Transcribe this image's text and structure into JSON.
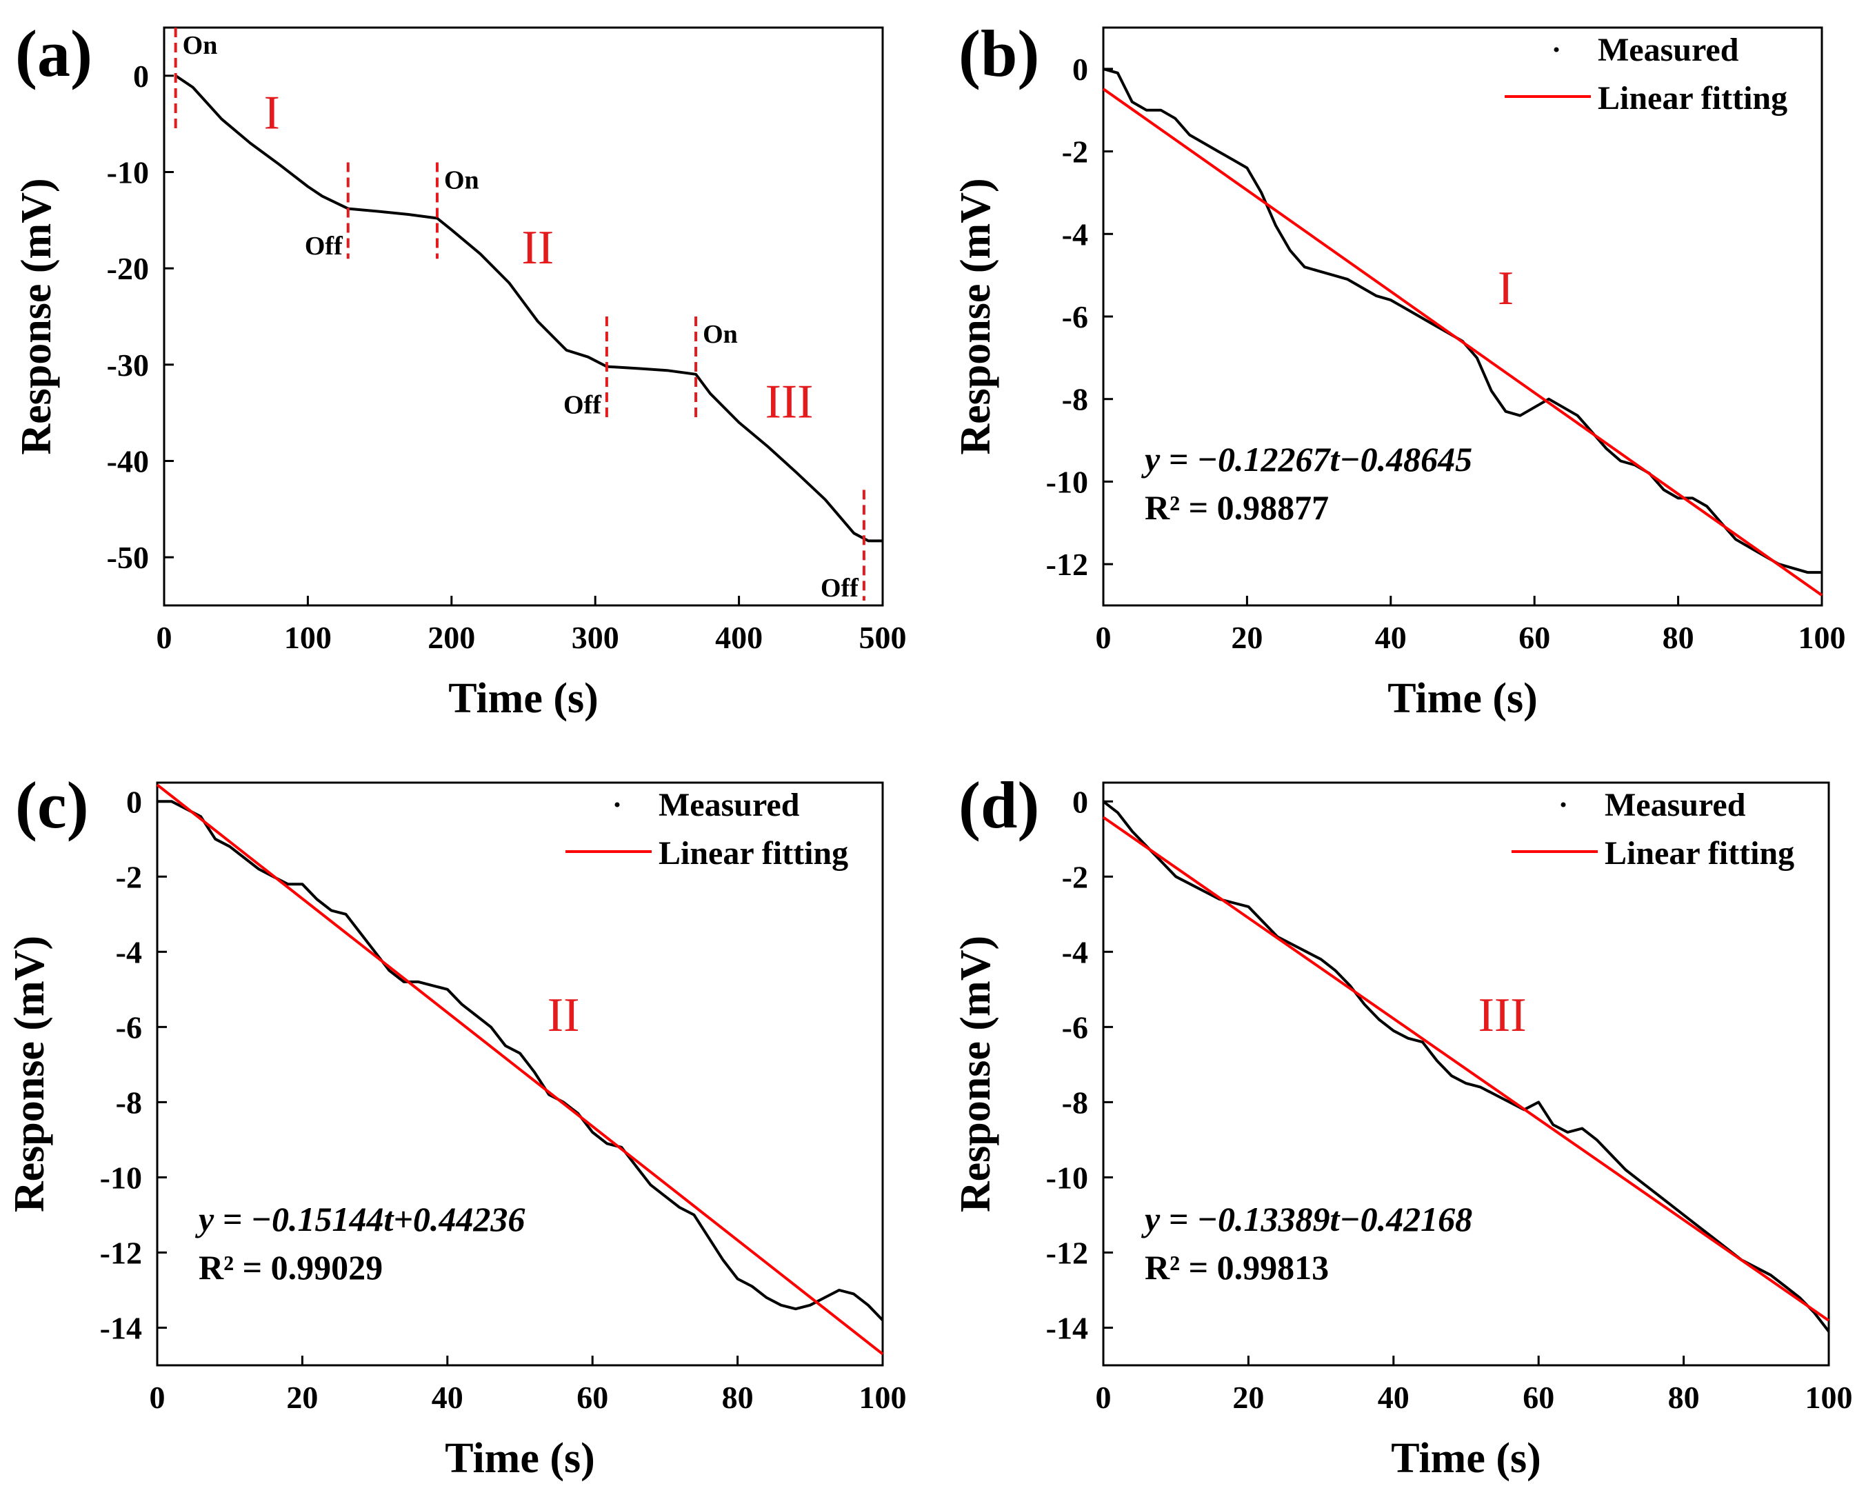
{
  "figure": {
    "colors": {
      "measured": "#000000",
      "fit": "#ff0000",
      "marker": "#e41a1c",
      "roman": "#e41a1c"
    }
  },
  "chart_data": [
    {
      "id": "a",
      "panel_label": "(a)",
      "type": "line",
      "xlabel": "Time (s)",
      "ylabel": "Response (mV)",
      "xlim": [
        0,
        500
      ],
      "ylim": [
        -55,
        5
      ],
      "xticks": [
        0,
        100,
        200,
        300,
        400,
        500
      ],
      "yticks": [
        0,
        -10,
        -20,
        -30,
        -40,
        -50
      ],
      "series": [
        {
          "name": "Response",
          "x": [
            8,
            20,
            40,
            60,
            80,
            100,
            110,
            128,
            150,
            170,
            190,
            200,
            220,
            240,
            260,
            280,
            295,
            308,
            330,
            350,
            370,
            380,
            400,
            420,
            440,
            460,
            480,
            490,
            500
          ],
          "y": [
            0,
            -1.2,
            -4.5,
            -7,
            -9.2,
            -11.5,
            -12.5,
            -13.8,
            -14.1,
            -14.4,
            -14.8,
            -16,
            -18.5,
            -21.5,
            -25.5,
            -28.5,
            -29.2,
            -30.2,
            -30.4,
            -30.6,
            -31,
            -33,
            -36,
            -38.5,
            -41.2,
            -44,
            -47.5,
            -48.3,
            -48.3
          ]
        }
      ],
      "markers": [
        {
          "x": 8,
          "label": "On",
          "y_from": 5,
          "y_to": -6,
          "label_side": "right-top"
        },
        {
          "x": 128,
          "label": "Off",
          "y_from": -9,
          "y_to": -19,
          "label_side": "left-bottom"
        },
        {
          "x": 190,
          "label": "On",
          "y_from": -9,
          "y_to": -19,
          "label_side": "right-top"
        },
        {
          "x": 308,
          "label": "Off",
          "y_from": -25,
          "y_to": -35.5,
          "label_side": "left-bottom"
        },
        {
          "x": 370,
          "label": "On",
          "y_from": -25,
          "y_to": -35.5,
          "label_side": "right-top"
        },
        {
          "x": 487,
          "label": "Off",
          "y_from": -43,
          "y_to": -54.5,
          "label_side": "left-bottom"
        }
      ],
      "regions": [
        {
          "label": "I",
          "x": 75,
          "y": -5.5
        },
        {
          "label": "II",
          "x": 260,
          "y": -19.5
        },
        {
          "label": "III",
          "x": 435,
          "y": -35.5
        }
      ]
    },
    {
      "id": "b",
      "panel_label": "(b)",
      "type": "line",
      "xlabel": "Time (s)",
      "ylabel": "Response (mV)",
      "xlim": [
        0,
        100
      ],
      "ylim": [
        -13,
        1
      ],
      "xticks": [
        0,
        20,
        40,
        60,
        80,
        100
      ],
      "yticks": [
        0,
        -2,
        -4,
        -6,
        -8,
        -10,
        -12
      ],
      "legend": {
        "measured": "Measured",
        "fit": "Linear fitting"
      },
      "equation": "y = −0.12267t−0.48645",
      "r2": "R² = 0.98877",
      "region": {
        "label": "I",
        "x": 56,
        "y": -5.7
      },
      "fit": {
        "slope": -0.12267,
        "intercept": -0.48645
      },
      "series": [
        {
          "name": "Measured",
          "x": [
            0,
            2,
            4,
            6,
            8,
            10,
            12,
            14,
            16,
            18,
            20,
            22,
            24,
            26,
            28,
            30,
            32,
            34,
            36,
            38,
            40,
            42,
            44,
            46,
            48,
            50,
            52,
            54,
            56,
            58,
            60,
            62,
            64,
            66,
            68,
            70,
            72,
            74,
            76,
            78,
            80,
            82,
            84,
            86,
            88,
            90,
            92,
            94,
            96,
            98,
            100
          ],
          "y": [
            0,
            -0.1,
            -0.8,
            -1.0,
            -1.0,
            -1.2,
            -1.6,
            -1.8,
            -2.0,
            -2.2,
            -2.4,
            -3.0,
            -3.8,
            -4.4,
            -4.8,
            -4.9,
            -5.0,
            -5.1,
            -5.3,
            -5.5,
            -5.6,
            -5.8,
            -6.0,
            -6.2,
            -6.4,
            -6.6,
            -7.0,
            -7.8,
            -8.3,
            -8.4,
            -8.2,
            -8.0,
            -8.2,
            -8.4,
            -8.8,
            -9.2,
            -9.5,
            -9.6,
            -9.8,
            -10.2,
            -10.4,
            -10.4,
            -10.6,
            -11.0,
            -11.4,
            -11.6,
            -11.8,
            -12.0,
            -12.1,
            -12.2,
            -12.2
          ]
        }
      ]
    },
    {
      "id": "c",
      "panel_label": "(c)",
      "type": "line",
      "xlabel": "Time (s)",
      "ylabel": "Response (mV)",
      "xlim": [
        0,
        100
      ],
      "ylim": [
        -15,
        0.5
      ],
      "xticks": [
        0,
        20,
        40,
        60,
        80,
        100
      ],
      "yticks": [
        0,
        -2,
        -4,
        -6,
        -8,
        -10,
        -12,
        -14
      ],
      "legend": {
        "measured": "Measured",
        "fit": "Linear fitting"
      },
      "equation": "y = −0.15144t+0.44236",
      "r2": "R² = 0.99029",
      "region": {
        "label": "II",
        "x": 56,
        "y": -6.1
      },
      "fit": {
        "slope": -0.15144,
        "intercept": 0.44236
      },
      "series": [
        {
          "name": "Measured",
          "x": [
            0,
            2,
            4,
            6,
            8,
            10,
            12,
            14,
            16,
            18,
            20,
            22,
            24,
            26,
            28,
            30,
            32,
            34,
            36,
            38,
            40,
            42,
            44,
            46,
            48,
            50,
            52,
            54,
            56,
            58,
            60,
            62,
            64,
            66,
            68,
            70,
            72,
            74,
            76,
            78,
            80,
            82,
            84,
            86,
            88,
            90,
            92,
            94,
            96,
            98,
            100
          ],
          "y": [
            0,
            0,
            -0.2,
            -0.4,
            -1.0,
            -1.2,
            -1.5,
            -1.8,
            -2.0,
            -2.2,
            -2.2,
            -2.6,
            -2.9,
            -3.0,
            -3.5,
            -4.0,
            -4.5,
            -4.8,
            -4.8,
            -4.9,
            -5.0,
            -5.4,
            -5.7,
            -6.0,
            -6.5,
            -6.7,
            -7.2,
            -7.8,
            -8.0,
            -8.3,
            -8.8,
            -9.1,
            -9.2,
            -9.7,
            -10.2,
            -10.5,
            -10.8,
            -11.0,
            -11.6,
            -12.2,
            -12.7,
            -12.9,
            -13.2,
            -13.4,
            -13.5,
            -13.4,
            -13.2,
            -13.0,
            -13.1,
            -13.4,
            -13.8
          ]
        }
      ]
    },
    {
      "id": "d",
      "panel_label": "(d)",
      "type": "line",
      "xlabel": "Time (s)",
      "ylabel": "Response (mV)",
      "xlim": [
        0,
        100
      ],
      "ylim": [
        -15,
        0.5
      ],
      "xticks": [
        0,
        20,
        40,
        60,
        80,
        100
      ],
      "yticks": [
        0,
        -2,
        -4,
        -6,
        -8,
        -10,
        -12,
        -14
      ],
      "legend": {
        "measured": "Measured",
        "fit": "Linear fitting"
      },
      "equation": "y = −0.13389t−0.42168",
      "r2": "R² = 0.99813",
      "region": {
        "label": "III",
        "x": 55,
        "y": -6.1
      },
      "fit": {
        "slope": -0.13389,
        "intercept": -0.42168
      },
      "series": [
        {
          "name": "Measured",
          "x": [
            0,
            2,
            4,
            6,
            8,
            10,
            12,
            14,
            16,
            18,
            20,
            22,
            24,
            26,
            28,
            30,
            32,
            34,
            36,
            38,
            40,
            42,
            44,
            46,
            48,
            50,
            52,
            54,
            56,
            58,
            60,
            62,
            64,
            66,
            68,
            70,
            72,
            74,
            76,
            78,
            80,
            82,
            84,
            86,
            88,
            90,
            92,
            94,
            96,
            98,
            100
          ],
          "y": [
            0,
            -0.3,
            -0.8,
            -1.2,
            -1.6,
            -2.0,
            -2.2,
            -2.4,
            -2.6,
            -2.7,
            -2.8,
            -3.2,
            -3.6,
            -3.8,
            -4.0,
            -4.2,
            -4.5,
            -4.9,
            -5.4,
            -5.8,
            -6.1,
            -6.3,
            -6.4,
            -6.9,
            -7.3,
            -7.5,
            -7.6,
            -7.8,
            -8.0,
            -8.2,
            -8.0,
            -8.6,
            -8.8,
            -8.7,
            -9.0,
            -9.4,
            -9.8,
            -10.1,
            -10.4,
            -10.7,
            -11.0,
            -11.3,
            -11.6,
            -11.9,
            -12.2,
            -12.4,
            -12.6,
            -12.9,
            -13.2,
            -13.6,
            -14.1
          ]
        }
      ]
    }
  ]
}
